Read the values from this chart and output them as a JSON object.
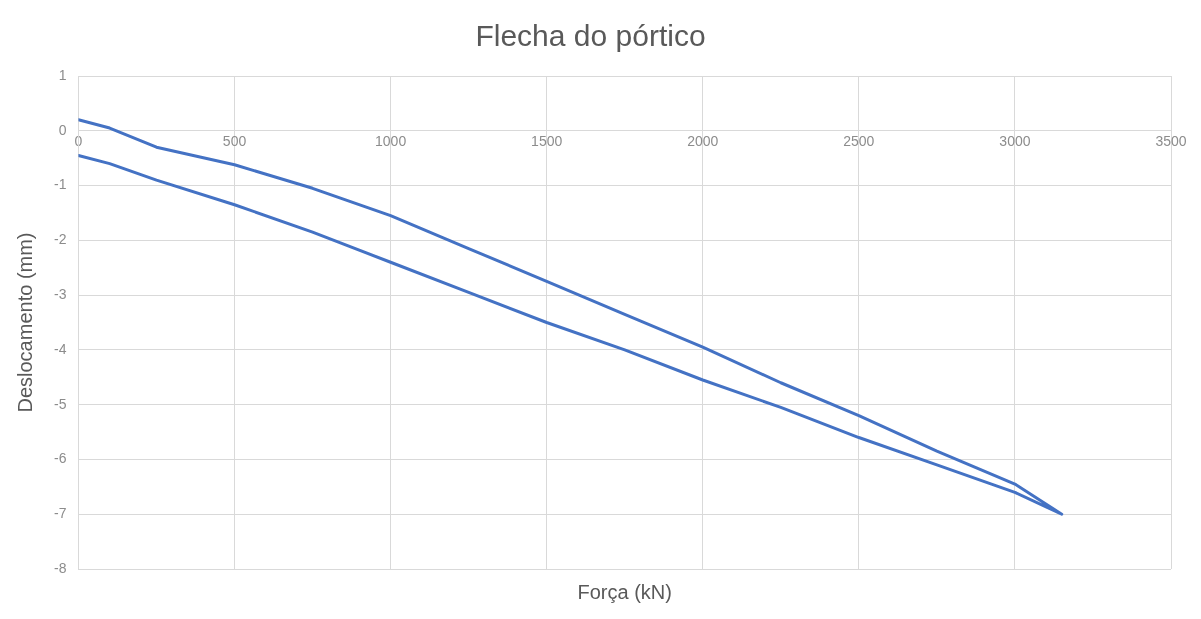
{
  "chart_data": {
    "type": "line",
    "title": "Flecha do pórtico",
    "xlabel": "Força (kN)",
    "ylabel": "Deslocamento (mm)",
    "xlim": [
      0,
      3500
    ],
    "xticks": [
      0,
      500,
      1000,
      1500,
      2000,
      2500,
      3000,
      3500
    ],
    "ylim": [
      -8,
      1
    ],
    "yticks": [
      -8,
      -7,
      -6,
      -5,
      -4,
      -3,
      -2,
      -1,
      0,
      1
    ],
    "grid": true,
    "legend": false,
    "marker": "none",
    "line_style": "solid",
    "series": [
      {
        "color": "#4472c4",
        "x": [
          0,
          100,
          250,
          500,
          750,
          1000,
          1250,
          1500,
          1750,
          2000,
          2250,
          2500,
          2750,
          3000,
          3150,
          3000,
          2750,
          2500,
          2250,
          2000,
          1750,
          1500,
          1250,
          1000,
          750,
          500,
          250,
          100,
          0
        ],
        "values": [
          0.2,
          0.05,
          -0.3,
          -0.62,
          -1.05,
          -1.55,
          -2.15,
          -2.75,
          -3.35,
          -3.95,
          -4.6,
          -5.2,
          -5.85,
          -6.45,
          -7.0,
          -6.6,
          -6.1,
          -5.6,
          -5.05,
          -4.55,
          -4.0,
          -3.5,
          -2.95,
          -2.4,
          -1.85,
          -1.35,
          -0.9,
          -0.6,
          -0.45
        ]
      }
    ]
  }
}
